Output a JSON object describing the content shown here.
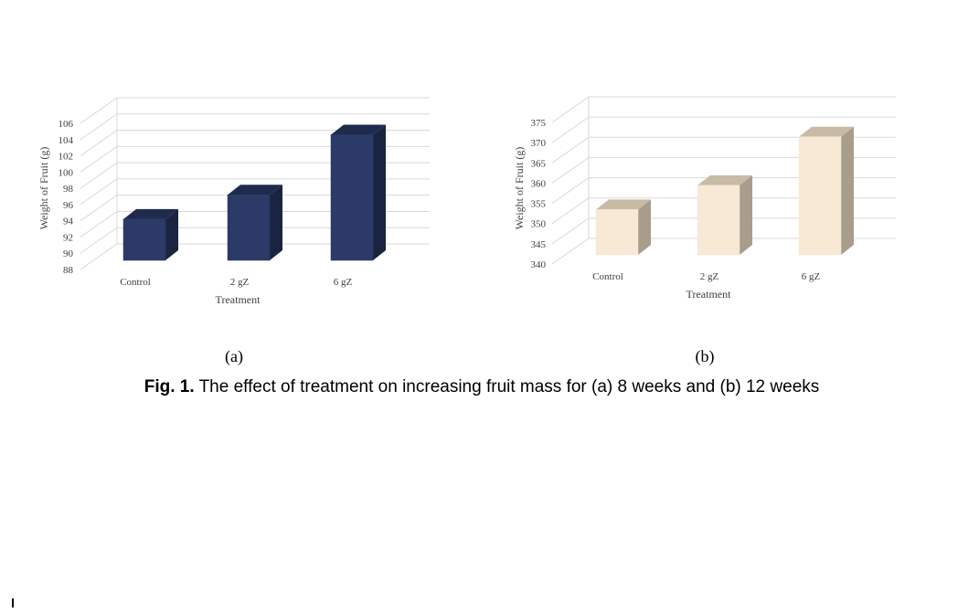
{
  "chart_data": [
    {
      "type": "bar",
      "categories": [
        "Control",
        "2 gZ",
        "6 gZ"
      ],
      "values": [
        94.2,
        97.2,
        104.6
      ],
      "ylim": [
        88,
        106
      ],
      "yticks": [
        88,
        90,
        92,
        94,
        96,
        98,
        100,
        102,
        104,
        106
      ],
      "xlabel": "Treatment",
      "ylabel": "Weight of Fruit (g)",
      "panel_label": "(a)",
      "grid": true,
      "three_d": true,
      "colors": {
        "front": "#2b3a67",
        "top": "#1f2b4d",
        "side": "#1a2440"
      }
    },
    {
      "type": "bar",
      "categories": [
        "Control",
        "2 gZ",
        "6 gZ"
      ],
      "values": [
        353,
        359,
        371
      ],
      "ylim": [
        340,
        375
      ],
      "yticks": [
        340,
        345,
        350,
        355,
        360,
        365,
        370,
        375
      ],
      "xlabel": "Treatment",
      "ylabel": "Weight of Fruit (g)",
      "panel_label": "(b)",
      "grid": true,
      "three_d": true,
      "colors": {
        "front": "#f8e8d6",
        "top": "#c7bba6",
        "side": "#a89d8c"
      }
    }
  ],
  "caption": {
    "bold": "Fig. 1.",
    "text": " The effect of treatment on increasing fruit mass for (a) 8 weeks and (b) 12 weeks"
  }
}
